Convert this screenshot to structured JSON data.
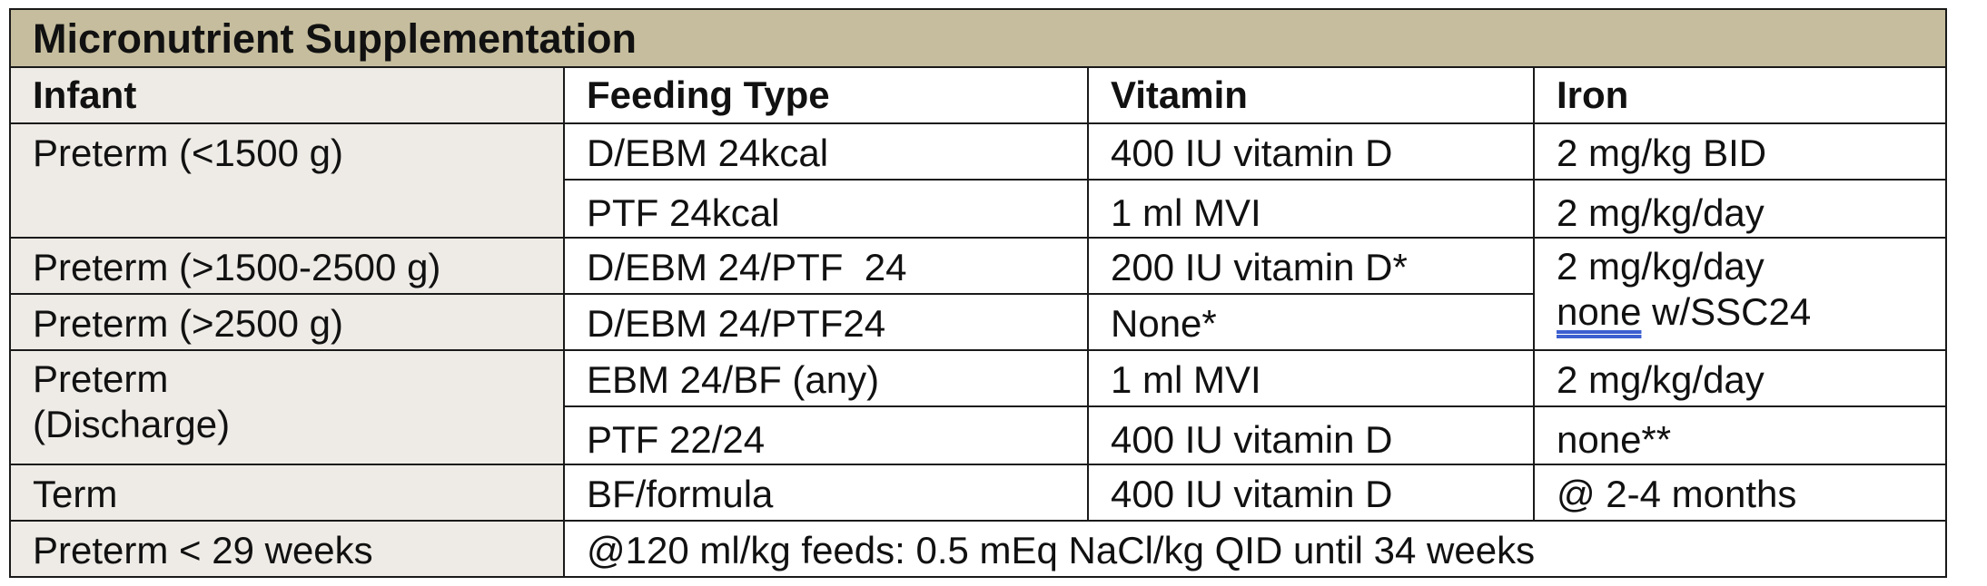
{
  "colors": {
    "title_bg": "#c6bd9e",
    "infant_col_bg": "#eeebe6",
    "cell_bg": "#ffffff",
    "border": "#1a1a1a",
    "underline": "#3c5fd0"
  },
  "table": {
    "title": "Micronutrient Supplementation",
    "headers": {
      "infant": "Infant",
      "feeding_type": "Feeding Type",
      "vitamin": "Vitamin",
      "iron": "Iron"
    },
    "groups": {
      "preterm_lt1500": {
        "infant": "Preterm (<1500 g)",
        "rows": [
          {
            "feeding": "D/EBM 24kcal",
            "vitamin": "400 IU vitamin D",
            "iron": "2 mg/kg BID"
          },
          {
            "feeding": "PTF 24kcal",
            "vitamin": "1 ml MVI",
            "iron": "2 mg/kg/day"
          }
        ]
      },
      "preterm_1500_2500": {
        "infant": "Preterm (>1500-2500 g)",
        "feeding": "D/EBM 24/PTF  24",
        "vitamin": "200 IU vitamin D*"
      },
      "preterm_gt2500": {
        "infant": "Preterm (>2500 g)",
        "feeding": "D/EBM 24/PTF24",
        "vitamin": "None*"
      },
      "preterm_shared_iron": {
        "line1": "2 mg/kg/day",
        "line2_underlined": "none",
        "line2_rest": " w/SSC24"
      },
      "preterm_discharge": {
        "infant_line1": "Preterm",
        "infant_line2": "(Discharge)",
        "rows": [
          {
            "feeding": "EBM 24/BF (any)",
            "vitamin": "1 ml MVI",
            "iron": "2 mg/kg/day"
          },
          {
            "feeding": "PTF 22/24",
            "vitamin": "400 IU vitamin D",
            "iron": "none**"
          }
        ]
      },
      "term": {
        "infant": "Term",
        "feeding": "BF/formula",
        "vitamin": "400 IU vitamin D",
        "iron": "@ 2-4 months"
      },
      "preterm_lt29": {
        "infant": "Preterm < 29 weeks",
        "note": "@120 ml/kg feeds: 0.5 mEq NaCl/kg QID until 34 weeks"
      }
    }
  }
}
